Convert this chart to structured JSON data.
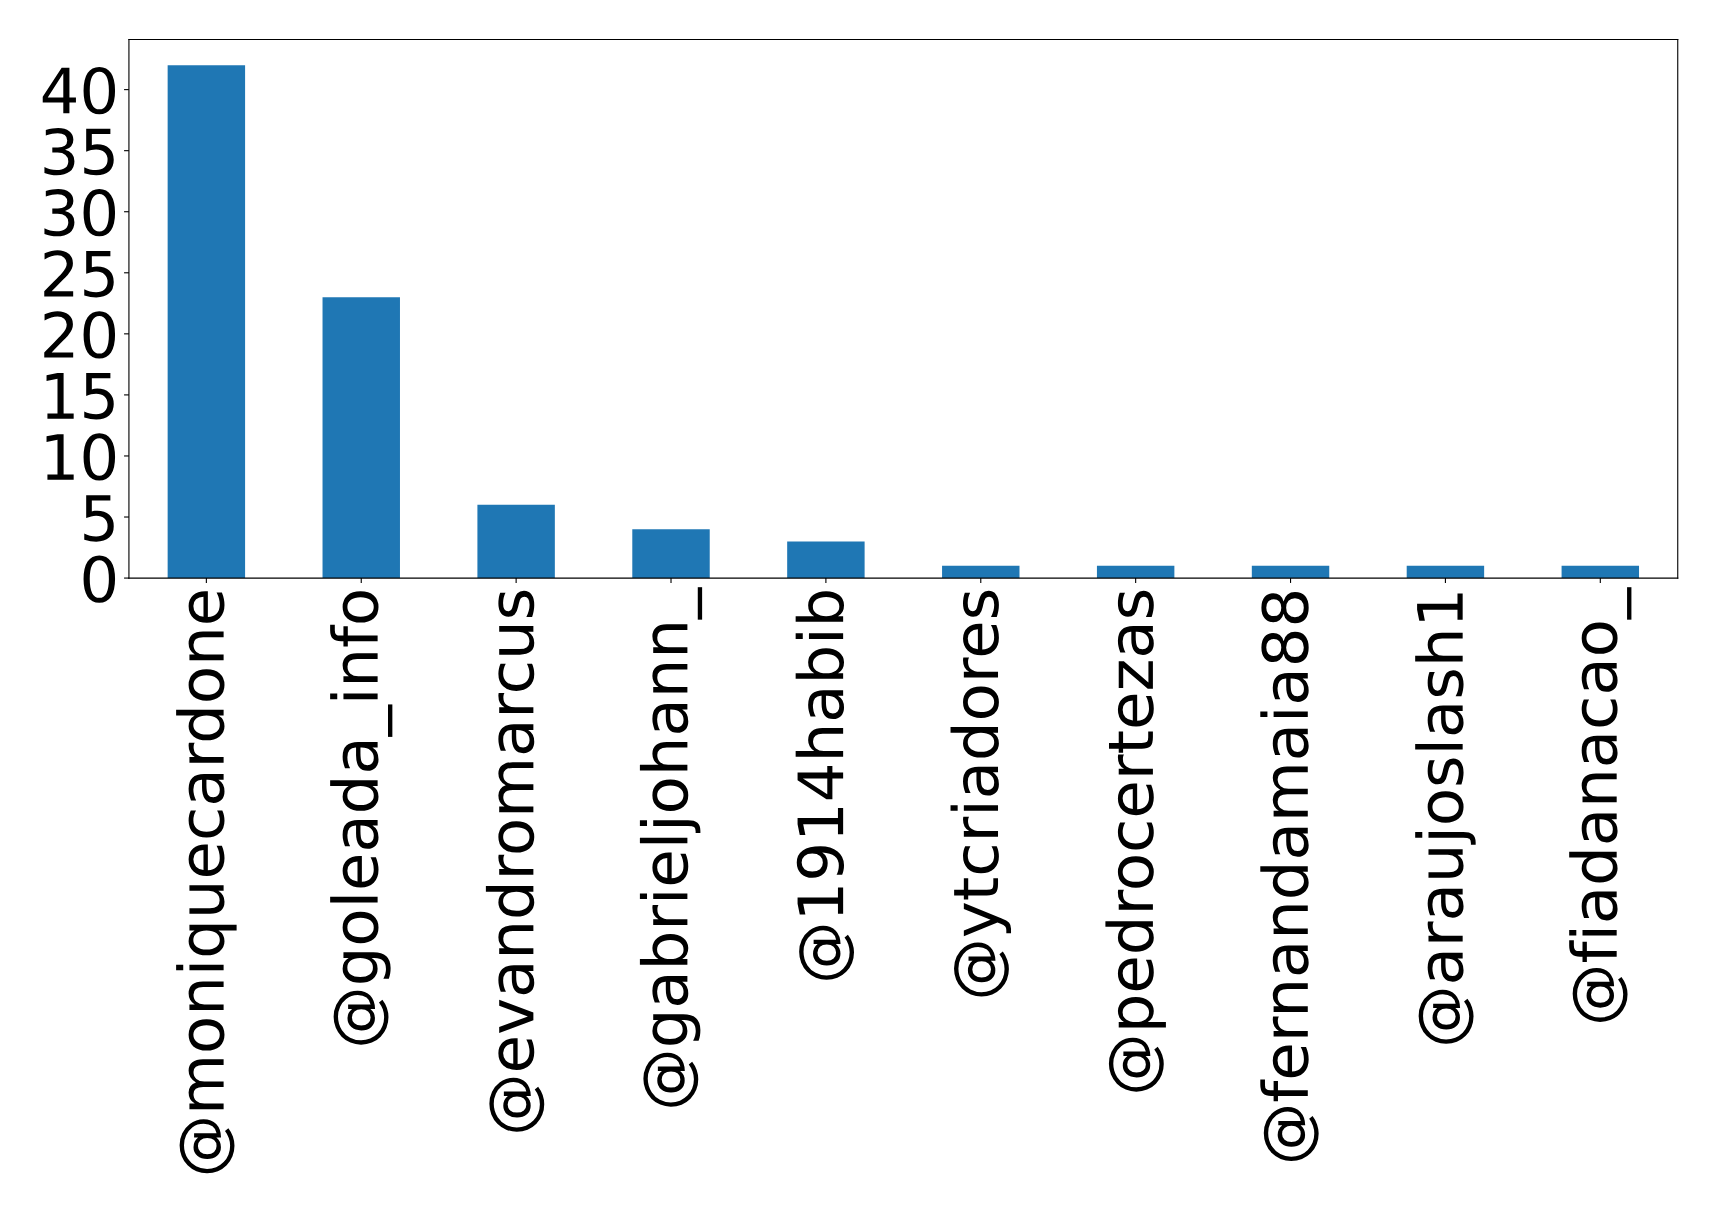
{
  "chart_data": {
    "type": "bar",
    "categories": [
      "@moniquecardone",
      "@goleada_info",
      "@evandromarcus",
      "@gabrieljohann_",
      "@1914habib",
      "@ytcriadores",
      "@pedrocertezas",
      "@fernandamaia88",
      "@araujoslash1",
      "@fiadanacao_"
    ],
    "values": [
      42,
      23,
      6,
      4,
      3,
      1,
      1,
      1,
      1,
      1
    ],
    "color": "#1f77b4",
    "ylim": [
      0,
      44.1
    ],
    "yticks": [
      0,
      5,
      10,
      15,
      20,
      25,
      30,
      35,
      40
    ],
    "grid": false
  }
}
